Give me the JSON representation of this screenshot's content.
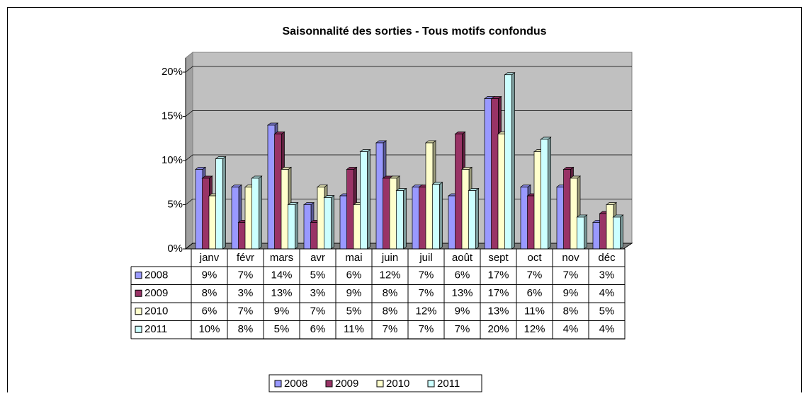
{
  "chart_data": {
    "type": "bar",
    "title": "Saisonnalité des sorties - Tous motifs confondus",
    "categories": [
      "janv",
      "févr",
      "mars",
      "avr",
      "mai",
      "juin",
      "juil",
      "août",
      "sept",
      "oct",
      "nov",
      "déc"
    ],
    "series": [
      {
        "name": "2008",
        "color": "#9999ff",
        "values": [
          9,
          7,
          14,
          5,
          6,
          12,
          7,
          6,
          17,
          7,
          7,
          3
        ],
        "value_labels": [
          "9%",
          "7%",
          "14%",
          "5%",
          "6%",
          "12%",
          "7%",
          "6%",
          "17%",
          "7%",
          "7%",
          "3%"
        ]
      },
      {
        "name": "2009",
        "color": "#993366",
        "values": [
          8,
          3,
          13,
          3,
          9,
          8,
          7,
          13,
          17,
          6,
          9,
          4
        ],
        "value_labels": [
          "8%",
          "3%",
          "13%",
          "3%",
          "9%",
          "8%",
          "7%",
          "13%",
          "17%",
          "6%",
          "9%",
          "4%"
        ]
      },
      {
        "name": "2010",
        "color": "#ffffcc",
        "values": [
          6,
          7,
          9,
          7,
          5,
          8,
          12,
          9,
          13,
          11,
          8,
          5
        ],
        "value_labels": [
          "6%",
          "7%",
          "9%",
          "7%",
          "5%",
          "8%",
          "12%",
          "9%",
          "13%",
          "11%",
          "8%",
          "5%"
        ]
      },
      {
        "name": "2011",
        "color": "#ccffff",
        "values": [
          10.2,
          8,
          5,
          5.8,
          11,
          6.6,
          7.3,
          6.6,
          19.7,
          12.4,
          3.6,
          3.6
        ],
        "value_labels": [
          "10%",
          "8%",
          "5%",
          "6%",
          "11%",
          "7%",
          "7%",
          "7%",
          "20%",
          "12%",
          "4%",
          "4%"
        ]
      }
    ],
    "ylim": [
      0,
      20
    ],
    "yticks": [
      {
        "value": 0,
        "label": "0%"
      },
      {
        "value": 5,
        "label": "5%"
      },
      {
        "value": 10,
        "label": "10%"
      },
      {
        "value": 15,
        "label": "15%"
      },
      {
        "value": 20,
        "label": "20%"
      }
    ],
    "grid": true
  }
}
